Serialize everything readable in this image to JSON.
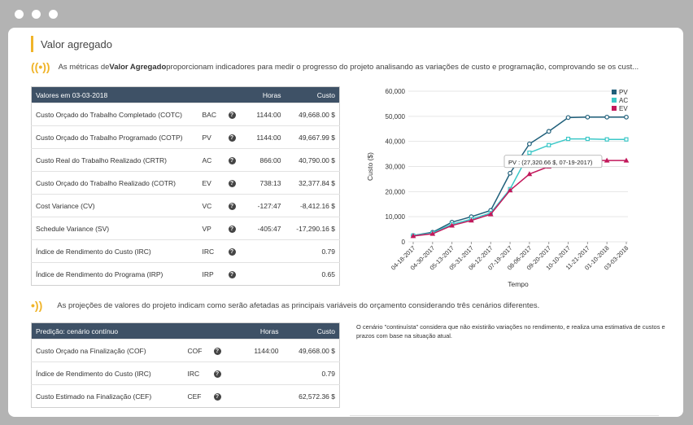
{
  "page": {
    "title": "Valor agregado",
    "intro_pre": "As métricas de ",
    "intro_bold": "Valor Agregado",
    "intro_post": " proporcionam indicadores para medir o progresso do projeto analisando as variações de custo e programação, comprovando se os cust...",
    "projections_text": "As projeções de valores do projeto indicam como serão afetadas as principais variáveis do orçamento considerando três cenários diferentes.",
    "scenario_note": "O cenário \"continuísta\" considera que não existirão variações no rendimento, e realiza uma estimativa de custos e prazos com base na situação atual."
  },
  "values_table": {
    "header": {
      "label": "Valores em 03-03-2018",
      "hours": "Horas",
      "cost": "Custo"
    },
    "rows": [
      {
        "label": "Custo Orçado do Trabalho Completado (COTC)",
        "code": "BAC",
        "hours": "1144:00",
        "cost": "49,668.00 $",
        "negative": false
      },
      {
        "label": "Custo Orçado do Trabalho Programado (COTP)",
        "code": "PV",
        "hours": "1144:00",
        "cost": "49,667.99 $",
        "negative": false
      },
      {
        "label": "Custo Real do Trabalho Realizado (CRTR)",
        "code": "AC",
        "hours": "866:00",
        "cost": "40,790.00 $",
        "negative": false
      },
      {
        "label": "Custo Orçado do Trabalho Realizado (COTR)",
        "code": "EV",
        "hours": "738:13",
        "cost": "32,377.84 $",
        "negative": false
      },
      {
        "label": "Cost Variance (CV)",
        "code": "VC",
        "hours": "-127:47",
        "cost": "-8,412.16 $",
        "negative": true
      },
      {
        "label": "Schedule Variance (SV)",
        "code": "VP",
        "hours": "-405:47",
        "cost": "-17,290.16 $",
        "negative": true
      },
      {
        "label": "Índice de Rendimento do Custo (IRC)",
        "code": "IRC",
        "hours": "",
        "cost": "0.79",
        "negative": false
      },
      {
        "label": "Índice de Rendimento do Programa (IRP)",
        "code": "IRP",
        "hours": "",
        "cost": "0.65",
        "negative": false
      }
    ]
  },
  "prediction_table": {
    "header": {
      "label": "Predição: cenário contínuo",
      "hours": "Horas",
      "cost": "Custo"
    },
    "rows": [
      {
        "label": "Custo Orçado na Finalização (COF)",
        "code": "COF",
        "hours": "1144:00",
        "cost": "49,668.00 $"
      },
      {
        "label": "Índice de Rendimento do Custo (IRC)",
        "code": "IRC",
        "hours": "",
        "cost": "0.79"
      },
      {
        "label": "Custo Estimado na Finalização (CEF)",
        "code": "CEF",
        "hours": "",
        "cost": "62,572.36 $"
      }
    ]
  },
  "icons": {
    "broadcast": "broadcast-icon",
    "signal": "signal-icon",
    "help": "question-icon"
  },
  "colors": {
    "pv": "#1f5f7a",
    "ac": "#3cc8c8",
    "ev": "#c2185b",
    "header": "#3e5166",
    "accent": "#f0b429",
    "negative": "#e02020"
  },
  "chart_data": {
    "type": "line",
    "categories": [
      "04-18-2017",
      "04-30-2017",
      "05-13-2017",
      "05-31-2017",
      "06-12-2017",
      "07-19-2017",
      "08-06-2017",
      "09-20-2017",
      "10-10-2017",
      "11-21-2017",
      "01-10-2018",
      "03-03-2018"
    ],
    "series": [
      {
        "name": "PV",
        "color": "#1f5f7a",
        "values": [
          2500,
          3800,
          7800,
          10000,
          12500,
          27320.66,
          39000,
          44000,
          49500,
          49667,
          49667,
          49667.99
        ]
      },
      {
        "name": "AC",
        "color": "#3cc8c8",
        "values": [
          2500,
          3500,
          7000,
          9000,
          11500,
          21000,
          35500,
          38500,
          41000,
          41000,
          40790,
          40790
        ]
      },
      {
        "name": "EV",
        "color": "#c2185b",
        "values": [
          2300,
          3200,
          6500,
          8500,
          11000,
          20500,
          27000,
          30000,
          32377.84,
          32377.84,
          32377.84,
          32377.84
        ]
      }
    ],
    "xlabel": "Tempo",
    "ylabel": "Custo ($)",
    "yticks": [
      "0",
      "10,000",
      "20,000",
      "30,000",
      "40,000",
      "50,000",
      "60,000"
    ],
    "ylim": [
      0,
      60000
    ],
    "legend_position": "top-right",
    "tooltip": "PV : (27,320.66 $, 07-19-2017)"
  }
}
